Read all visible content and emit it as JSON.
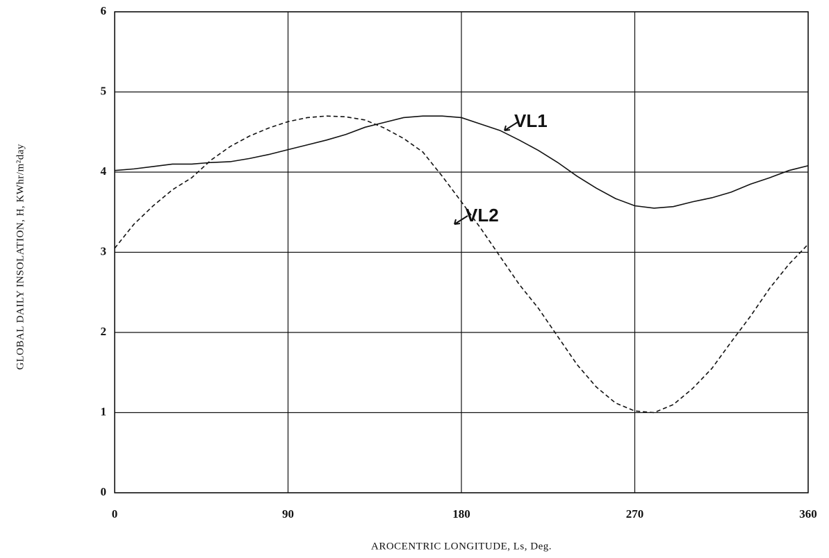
{
  "chart_data": {
    "type": "line",
    "x_label": "AROCENTRIC LONGITUDE, Ls, Deg.",
    "y_label": "GLOBAL DAILY INSOLATION, H, KWhr/m²day",
    "x": [
      0,
      10,
      20,
      30,
      40,
      50,
      60,
      70,
      80,
      90,
      100,
      110,
      120,
      130,
      140,
      150,
      160,
      170,
      180,
      190,
      200,
      210,
      220,
      230,
      240,
      250,
      260,
      270,
      280,
      290,
      300,
      310,
      320,
      330,
      340,
      350,
      360
    ],
    "series": [
      {
        "name": "VL1",
        "color": "#111111",
        "dash": false,
        "values": [
          4.02,
          4.04,
          4.07,
          4.1,
          4.1,
          4.12,
          4.13,
          4.17,
          4.22,
          4.28,
          4.34,
          4.4,
          4.47,
          4.56,
          4.62,
          4.68,
          4.7,
          4.7,
          4.68,
          4.6,
          4.52,
          4.4,
          4.27,
          4.12,
          3.95,
          3.8,
          3.67,
          3.58,
          3.55,
          3.57,
          3.63,
          3.68,
          3.75,
          3.85,
          3.93,
          4.02,
          4.08
        ]
      },
      {
        "name": "VL2",
        "color": "#111111",
        "dash": true,
        "values": [
          3.05,
          3.35,
          3.58,
          3.78,
          3.93,
          4.15,
          4.32,
          4.45,
          4.55,
          4.63,
          4.68,
          4.7,
          4.69,
          4.65,
          4.55,
          4.42,
          4.25,
          3.95,
          3.63,
          3.3,
          2.95,
          2.6,
          2.3,
          1.95,
          1.6,
          1.32,
          1.12,
          1.02,
          1.0,
          1.1,
          1.3,
          1.55,
          1.88,
          2.2,
          2.55,
          2.85,
          3.1
        ]
      }
    ],
    "xlim": [
      0,
      360
    ],
    "xticks": [
      0,
      90,
      180,
      270,
      360
    ],
    "ylim": [
      0,
      6
    ],
    "yticks": [
      0,
      1,
      2,
      3,
      4,
      5,
      6
    ],
    "grid": true
  }
}
